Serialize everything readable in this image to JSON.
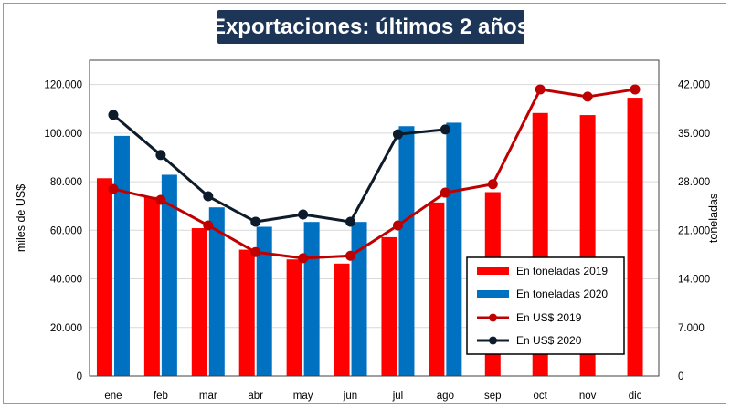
{
  "chart_data": {
    "type": "bar+line",
    "title": "Exportaciones: últimos 2 años",
    "categories": [
      "ene",
      "feb",
      "mar",
      "abr",
      "may",
      "jun",
      "jul",
      "ago",
      "sep",
      "oct",
      "nov",
      "dic"
    ],
    "y_left": {
      "label": "miles de US$",
      "range": [
        0,
        130000
      ],
      "ticks": [
        0,
        20000,
        40000,
        60000,
        80000,
        100000,
        120000
      ],
      "tick_labels": [
        "0",
        "20.000",
        "40.000",
        "60.000",
        "80.000",
        "100.000",
        "120.000"
      ]
    },
    "y_right": {
      "label": "toneladas",
      "range": [
        0,
        45500
      ],
      "ticks": [
        0,
        7000,
        14000,
        21000,
        28000,
        35000,
        42000
      ],
      "tick_labels": [
        "0",
        "7.000",
        "14.000",
        "21.000",
        "28.000",
        "35.000",
        "42.000"
      ]
    },
    "series": [
      {
        "name": "En toneladas 2019",
        "type": "bar",
        "axis": "right",
        "color": "#ff0000",
        "values": [
          28500,
          25800,
          21300,
          18200,
          16800,
          16200,
          20000,
          25000,
          26500,
          37900,
          37600,
          40100
        ]
      },
      {
        "name": "En toneladas 2020",
        "type": "bar",
        "axis": "right",
        "color": "#0070c0",
        "values": [
          34600,
          29000,
          24300,
          21500,
          22200,
          22200,
          36000,
          36500,
          null,
          null,
          null,
          null
        ]
      },
      {
        "name": "En US$ 2019",
        "type": "line",
        "axis": "left",
        "color": "#c00000",
        "values": [
          77000,
          72500,
          62000,
          51000,
          48500,
          49500,
          62000,
          75500,
          79000,
          118000,
          115000,
          118000
        ]
      },
      {
        "name": "En US$ 2020",
        "type": "line",
        "axis": "left",
        "color": "#0d1b2a",
        "values": [
          107500,
          91000,
          74000,
          63500,
          66500,
          63500,
          99500,
          101500,
          null,
          null,
          null,
          null
        ]
      }
    ],
    "legend_position": "bottom-right"
  }
}
